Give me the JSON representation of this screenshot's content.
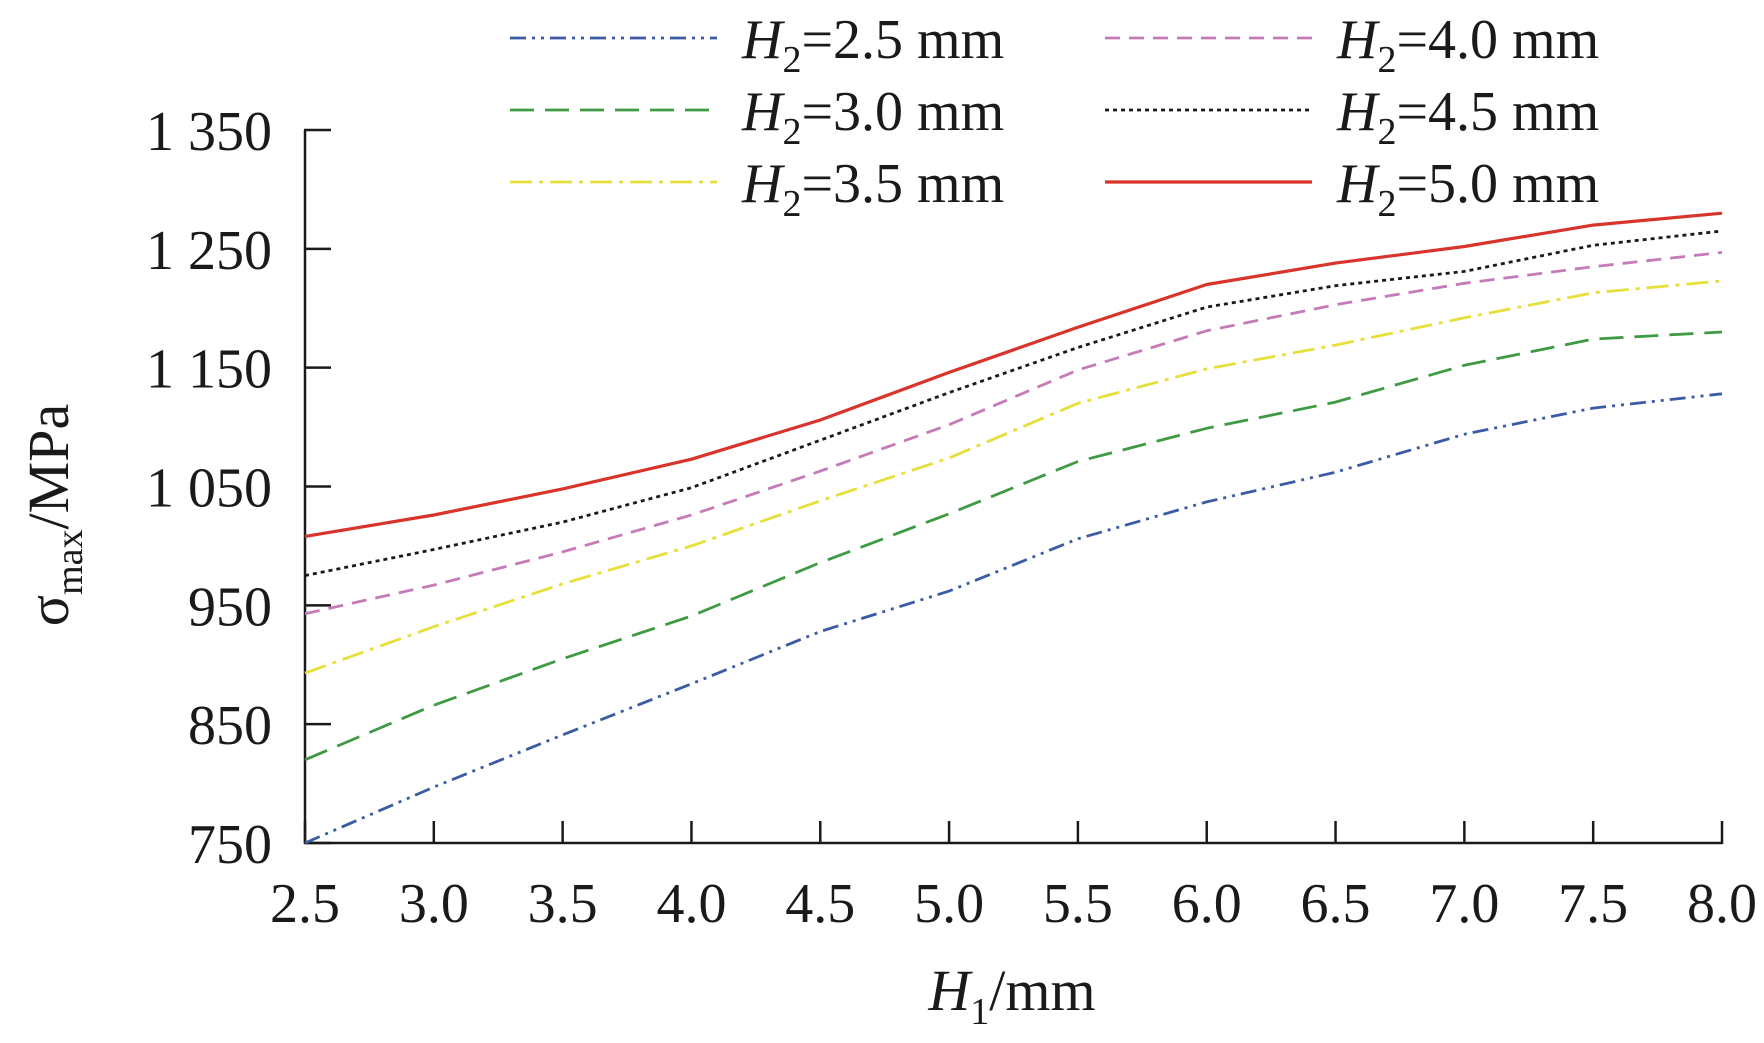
{
  "chart_data": {
    "type": "line",
    "xlabel": {
      "var": "H",
      "sub": "1",
      "unit": "/mm"
    },
    "ylabel": {
      "var": "σ",
      "sub": "max",
      "unit": "/MPa"
    },
    "xlim": [
      2.5,
      8.0
    ],
    "ylim": [
      750,
      1350
    ],
    "x_ticks": [
      "2.5",
      "3.0",
      "3.5",
      "4.0",
      "4.5",
      "5.0",
      "5.5",
      "6.0",
      "6.5",
      "7.0",
      "7.5",
      "8.0"
    ],
    "y_ticks": [
      "750",
      "850",
      "950",
      "1 050",
      "1 150",
      "1 250",
      "1 350"
    ],
    "grid": false,
    "legend_position": "top",
    "x": [
      2.5,
      3.0,
      3.5,
      4.0,
      4.5,
      5.0,
      5.5,
      6.0,
      6.5,
      7.0,
      7.5,
      8.0
    ],
    "series": [
      {
        "name": "H2=2.5 mm",
        "label_var": "H",
        "label_sub": "2",
        "label_rest": "=2.5 mm",
        "color": "#3b5ba5",
        "dash": "dashdotdot",
        "values": [
          750,
          797,
          841,
          884,
          928,
          962,
          1006,
          1037,
          1062,
          1094,
          1116,
          1128
        ]
      },
      {
        "name": "H2=3.0 mm",
        "label_var": "H",
        "label_sub": "2",
        "label_rest": "=3.0 mm",
        "color": "#3f9a44",
        "dash": "longdash",
        "values": [
          820,
          866,
          905,
          941,
          986,
          1027,
          1071,
          1099,
          1121,
          1152,
          1174,
          1180
        ]
      },
      {
        "name": "H2=3.5 mm",
        "label_var": "H",
        "label_sub": "2",
        "label_rest": "=3.5 mm",
        "color": "#e6df3c",
        "dash": "dashdot",
        "values": [
          893,
          932,
          968,
          1000,
          1038,
          1074,
          1120,
          1149,
          1169,
          1192,
          1213,
          1223
        ]
      },
      {
        "name": "H2=4.0 mm",
        "label_var": "H",
        "label_sub": "2",
        "label_rest": "=4.0 mm",
        "color": "#c57bb8",
        "dash": "dash",
        "values": [
          943,
          967,
          995,
          1026,
          1063,
          1102,
          1148,
          1181,
          1203,
          1221,
          1235,
          1247
        ]
      },
      {
        "name": "H2=4.5 mm",
        "label_var": "H",
        "label_sub": "2",
        "label_rest": "=4.5 mm",
        "color": "#1a1a1a",
        "dash": "dot",
        "values": [
          975,
          997,
          1020,
          1049,
          1089,
          1129,
          1167,
          1201,
          1219,
          1231,
          1253,
          1265
        ]
      },
      {
        "name": "H2=5.0 mm",
        "label_var": "H",
        "label_sub": "2",
        "label_rest": "=5.0 mm",
        "color": "#d9342b",
        "dash": "solid",
        "values": [
          1008,
          1026,
          1048,
          1073,
          1106,
          1146,
          1184,
          1220,
          1238,
          1252,
          1270,
          1280
        ]
      }
    ]
  }
}
